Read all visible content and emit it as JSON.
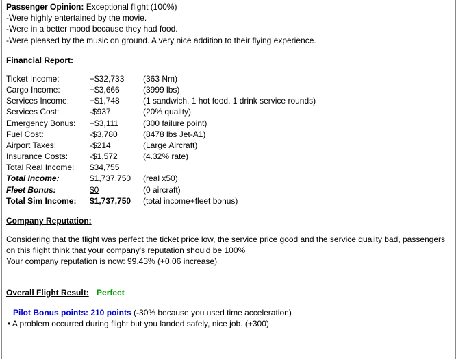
{
  "passenger_opinion": {
    "label": "Passenger Opinion:",
    "value": " Exceptional flight (100%)",
    "lines": [
      "-Were highly entertained by the movie.",
      "-Were in a better mood because they had food.",
      "-Were pleased by the music on ground.  A very nice addition to their flying experience."
    ]
  },
  "financial": {
    "title": "Financial Report:",
    "rows": [
      {
        "label": "Ticket Income:",
        "value": "+$32,733",
        "note": "(363 Nm)",
        "style": ""
      },
      {
        "label": "Cargo Income:",
        "value": "+$3,666",
        "note": "(3999 lbs)",
        "style": ""
      },
      {
        "label": "Services Income:",
        "value": "+$1,748",
        "note": "(1 sandwich, 1 hot food, 1 drink service rounds)",
        "style": ""
      },
      {
        "label": "Services Cost:",
        "value": "-$937",
        "note": "(20% quality)",
        "style": ""
      },
      {
        "label": "Emergency Bonus:",
        "value": "+$3,111",
        "note": "(300 failure point)",
        "style": ""
      },
      {
        "label": "Fuel Cost:",
        "value": "-$3,780",
        "note": "(8478 lbs Jet-A1)",
        "style": ""
      },
      {
        "label": "Airport Taxes:",
        "value": "-$214",
        "note": "(Large Aircraft)",
        "style": ""
      },
      {
        "label": "Insurance Costs:",
        "value": "-$1,572",
        "note": "(4.32% rate)",
        "style": ""
      },
      {
        "label": "Total Real Income:",
        "value": "$34,755",
        "note": "",
        "style": ""
      },
      {
        "label": "Total Income:",
        "value": "$1,737,750",
        "note": "(real x50)",
        "style": "bi"
      },
      {
        "label": "Fleet Bonus:",
        "value": "$0      ",
        "note": "(0 aircraft)",
        "style": "bi-u"
      },
      {
        "label": "Total Sim Income:",
        "value": "$1,737,750",
        "note": "(total income+fleet bonus)",
        "style": "b"
      }
    ]
  },
  "reputation": {
    "title": "Company Reputation:",
    "line1": "Considering that the flight was perfect the ticket price low, the service price good and the service quality bad, passengers on this flight think that your company's reputation should be 100%",
    "line2": "Your company reputation is now: 99.43% (+0.06 increase)"
  },
  "overall": {
    "label": "Overall Flight Result:",
    "value": "Perfect"
  },
  "bonus": {
    "label": "Pilot Bonus points:",
    "points": "  210 points",
    "note": "  (-30% because you used time acceleration)",
    "bullet": "• A problem occurred during flight but you landed safely, nice job. (+300)"
  }
}
